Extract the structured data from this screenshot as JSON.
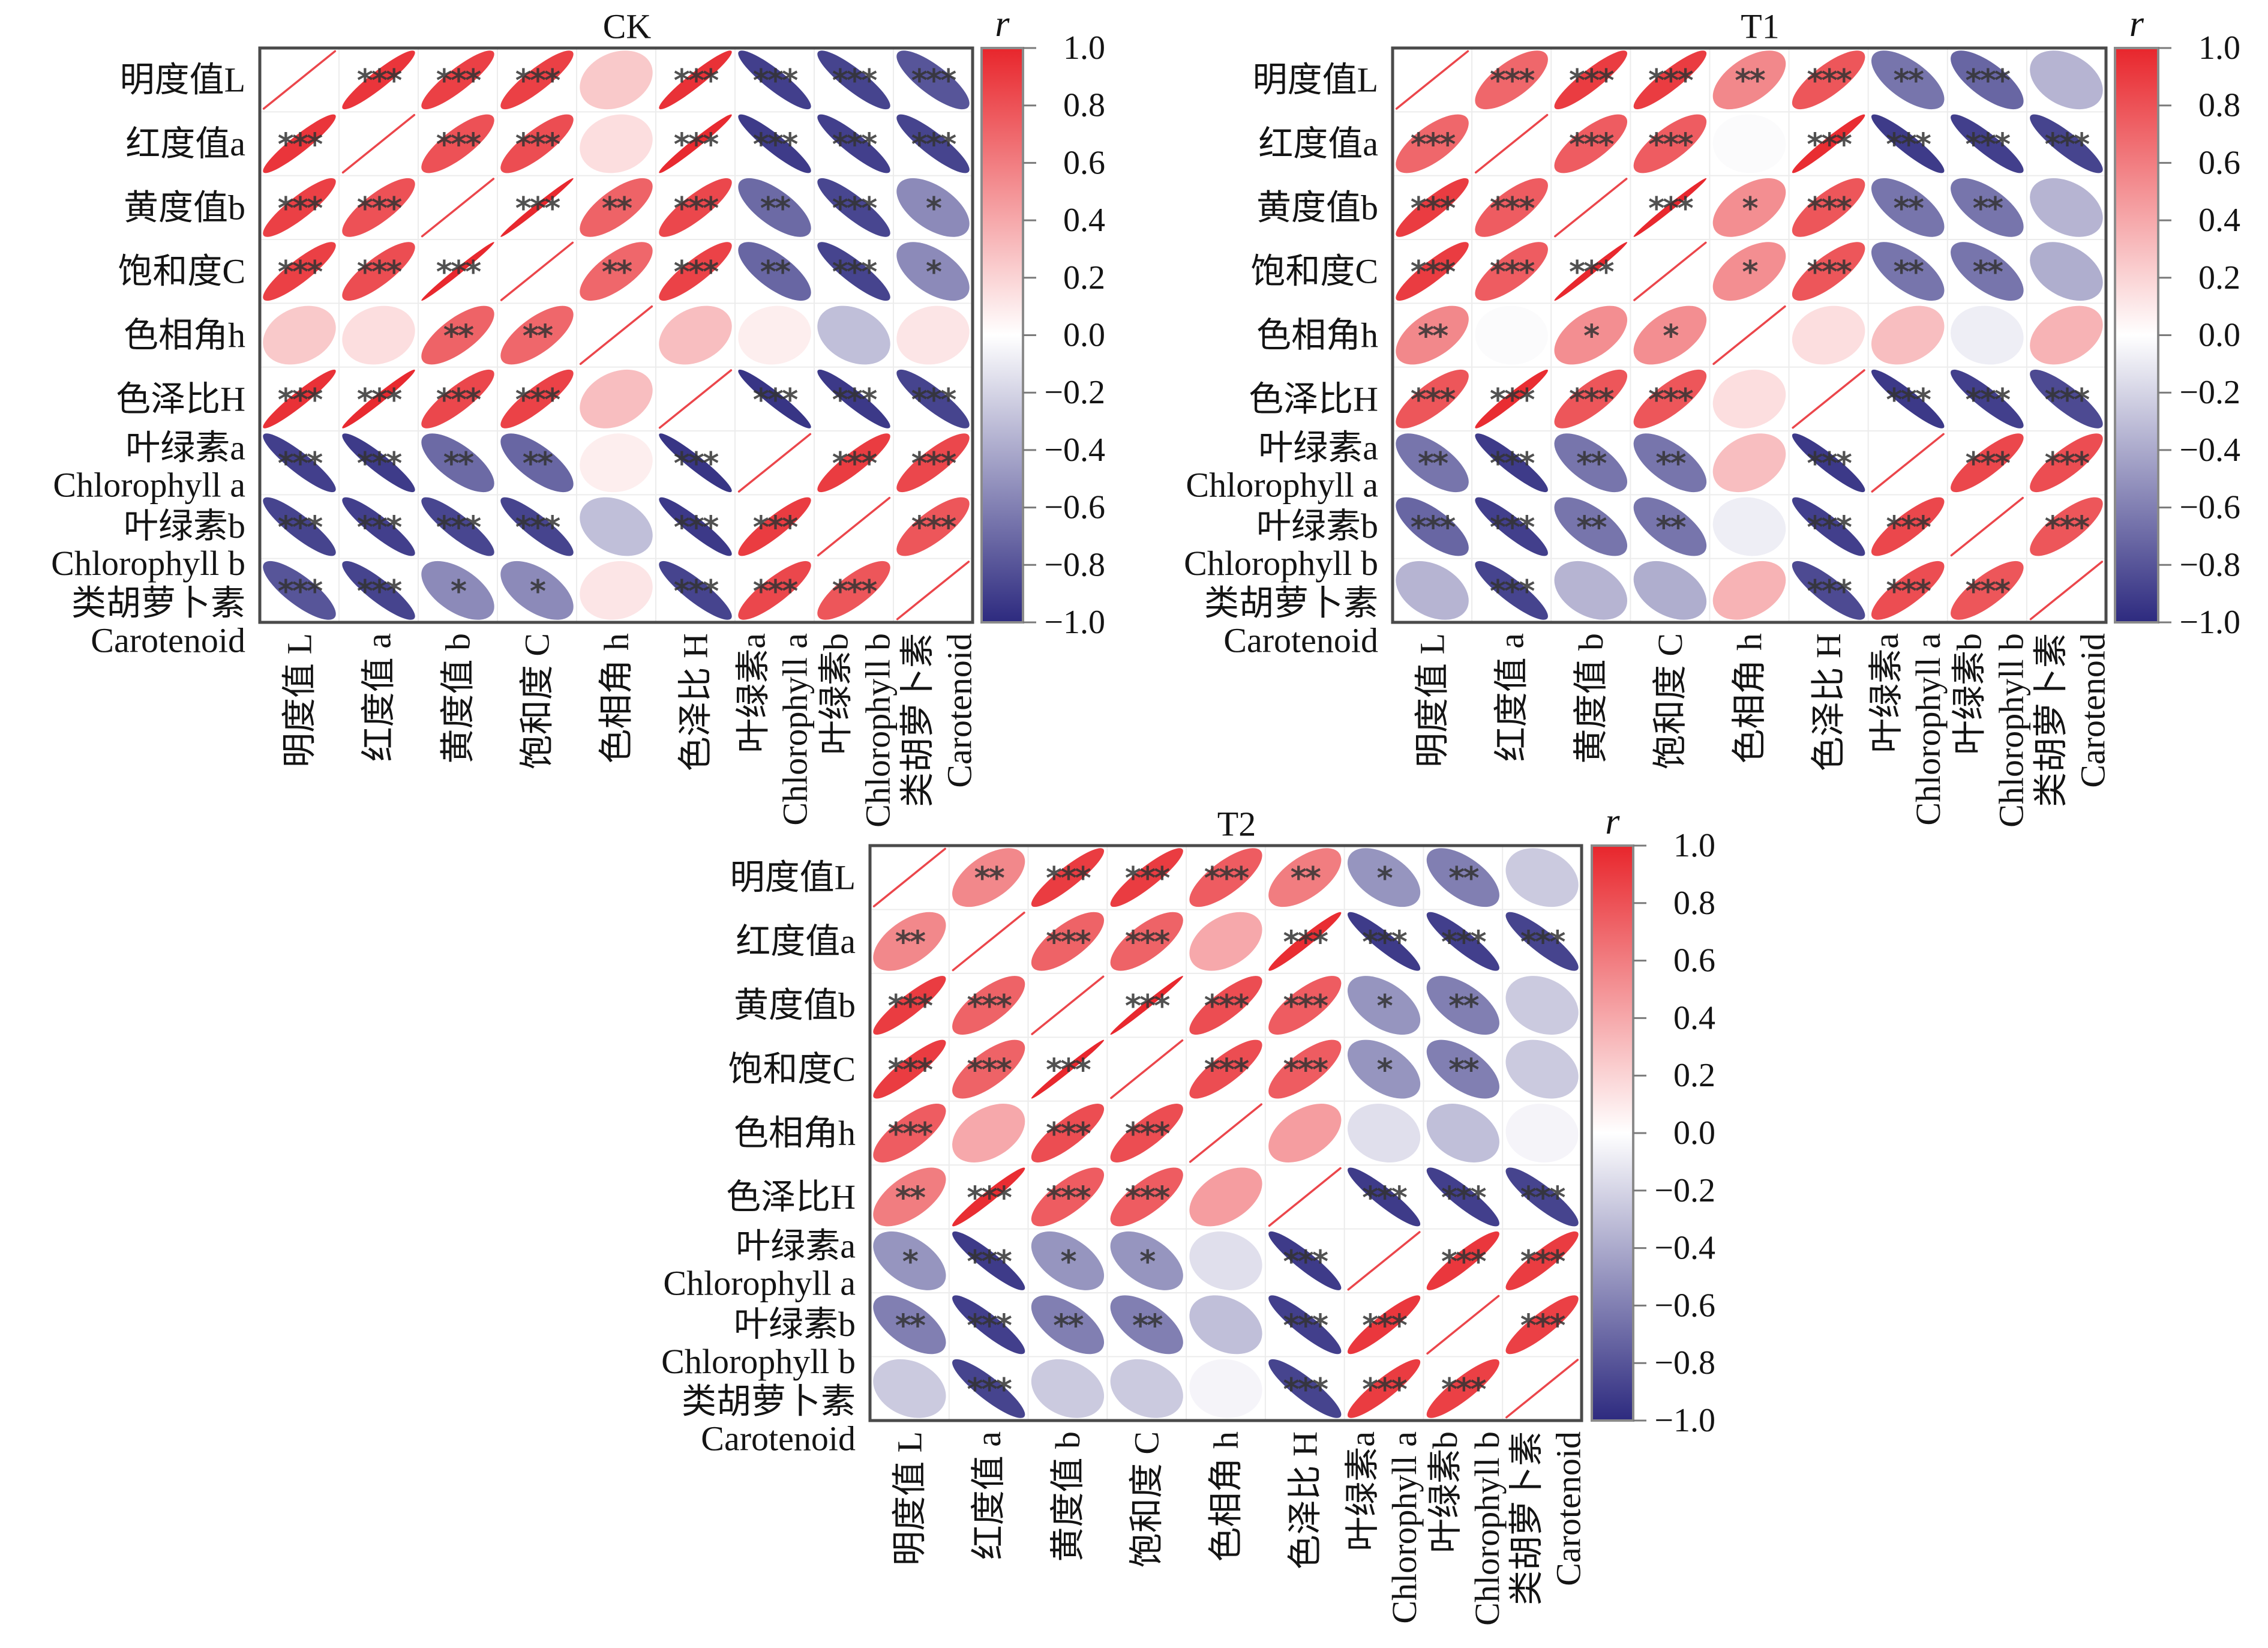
{
  "colors": {
    "positive": "#e8262c",
    "zero": "#ffffff",
    "negative": "#2d2a7f",
    "significance_marker": "#333333"
  },
  "chart_data": [
    {
      "type": "heatmap",
      "title": "CK",
      "row_labels": [
        [
          "明度值L"
        ],
        [
          "红度值a"
        ],
        [
          "黄度值b"
        ],
        [
          "饱和度C"
        ],
        [
          "色相角h"
        ],
        [
          "色泽比H"
        ],
        [
          "叶绿素a",
          "Chlorophyll a"
        ],
        [
          "叶绿素b",
          "Chlorophyll b"
        ],
        [
          "类胡萝卜素",
          "Carotenoid"
        ]
      ],
      "col_labels": [
        [
          "明度值 L"
        ],
        [
          "红度值 a"
        ],
        [
          "黄度值 b"
        ],
        [
          "饱和度 C"
        ],
        [
          "色相角 h"
        ],
        [
          "色泽比 H"
        ],
        [
          "叶绿素a",
          "Chlorophyll a"
        ],
        [
          "叶绿素b",
          "Chlorophyll b"
        ],
        [
          "类胡萝卜素",
          "Carotenoid"
        ]
      ],
      "r": [
        [
          1,
          0.93,
          0.88,
          0.88,
          0.25,
          0.95,
          -0.9,
          -0.88,
          -0.8
        ],
        [
          0.93,
          1,
          0.8,
          0.82,
          0.15,
          0.98,
          -0.92,
          -0.9,
          -0.88
        ],
        [
          0.88,
          0.8,
          1,
          0.99,
          0.72,
          0.85,
          -0.7,
          -0.87,
          -0.55
        ],
        [
          0.88,
          0.82,
          0.99,
          1,
          0.7,
          0.87,
          -0.72,
          -0.88,
          -0.55
        ],
        [
          0.25,
          0.15,
          0.72,
          0.7,
          1,
          0.3,
          0.08,
          -0.3,
          0.12
        ],
        [
          0.95,
          0.98,
          0.85,
          0.87,
          0.3,
          1,
          -0.95,
          -0.93,
          -0.88
        ],
        [
          -0.9,
          -0.92,
          -0.7,
          -0.72,
          0.08,
          -0.95,
          1,
          0.9,
          0.85
        ],
        [
          -0.88,
          -0.9,
          -0.87,
          -0.88,
          -0.3,
          -0.93,
          0.9,
          1,
          0.78
        ],
        [
          -0.8,
          -0.88,
          -0.55,
          -0.55,
          0.12,
          -0.88,
          0.85,
          0.78,
          1
        ]
      ],
      "significance": [
        [
          "",
          "***",
          "***",
          "***",
          "",
          "***",
          "***",
          "***",
          "***"
        ],
        [
          "***",
          "",
          "***",
          "***",
          "",
          "***",
          "***",
          "***",
          "***"
        ],
        [
          "***",
          "***",
          "",
          "***",
          "**",
          "***",
          "**",
          "***",
          "*"
        ],
        [
          "***",
          "***",
          "***",
          "",
          "**",
          "***",
          "**",
          "***",
          "*"
        ],
        [
          "",
          "",
          "**",
          "**",
          "",
          "",
          "",
          "",
          ""
        ],
        [
          "***",
          "***",
          "***",
          "***",
          "",
          "",
          "***",
          "***",
          "***"
        ],
        [
          "***",
          "***",
          "**",
          "**",
          "",
          "***",
          "",
          "***",
          "***"
        ],
        [
          "***",
          "***",
          "***",
          "***",
          "",
          "***",
          "***",
          "",
          "***"
        ],
        [
          "***",
          "***",
          "*",
          "*",
          "",
          "***",
          "***",
          "***",
          ""
        ]
      ],
      "colorbar": {
        "label": "r",
        "range": [
          -1,
          1
        ],
        "ticks": [
          1.0,
          0.8,
          0.6,
          0.4,
          0.2,
          0.0,
          -0.2,
          -0.4,
          -0.6,
          -0.8,
          -1.0
        ],
        "tick_labels": [
          "1.0",
          "0.8",
          "0.6",
          "0.4",
          "0.2",
          "0.0",
          "−0.2",
          "−0.4",
          "−0.6",
          "−0.8",
          "−1.0"
        ]
      }
    },
    {
      "type": "heatmap",
      "title": "T1",
      "row_labels": [
        [
          "明度值L"
        ],
        [
          "红度值a"
        ],
        [
          "黄度值b"
        ],
        [
          "饱和度C"
        ],
        [
          "色相角h"
        ],
        [
          "色泽比H"
        ],
        [
          "叶绿素a",
          "Chlorophyll a"
        ],
        [
          "叶绿素b",
          "Chlorophyll b"
        ],
        [
          "类胡萝卜素",
          "Carotenoid"
        ]
      ],
      "col_labels": [
        [
          "明度值 L"
        ],
        [
          "红度值 a"
        ],
        [
          "黄度值 b"
        ],
        [
          "饱和度 C"
        ],
        [
          "色相角 h"
        ],
        [
          "色泽比 H"
        ],
        [
          "叶绿素a",
          "Chlorophyll a"
        ],
        [
          "叶绿素b",
          "Chlorophyll b"
        ],
        [
          "类胡萝卜素",
          "Carotenoid"
        ]
      ],
      "r": [
        [
          1,
          0.7,
          0.9,
          0.9,
          0.55,
          0.78,
          -0.65,
          -0.72,
          -0.35
        ],
        [
          0.7,
          1,
          0.75,
          0.75,
          -0.02,
          0.97,
          -0.92,
          -0.9,
          -0.88
        ],
        [
          0.9,
          0.75,
          1,
          0.99,
          0.52,
          0.78,
          -0.65,
          -0.65,
          -0.35
        ],
        [
          0.9,
          0.75,
          0.99,
          1,
          0.52,
          0.78,
          -0.65,
          -0.65,
          -0.38
        ],
        [
          0.55,
          -0.02,
          0.52,
          0.52,
          1,
          0.15,
          0.3,
          -0.08,
          0.35
        ],
        [
          0.78,
          0.97,
          0.78,
          0.78,
          0.15,
          1,
          -0.93,
          -0.9,
          -0.85
        ],
        [
          -0.65,
          -0.92,
          -0.65,
          -0.65,
          0.3,
          -0.93,
          1,
          0.85,
          0.82
        ],
        [
          -0.72,
          -0.9,
          -0.65,
          -0.65,
          -0.08,
          -0.9,
          0.85,
          1,
          0.78
        ],
        [
          -0.35,
          -0.88,
          -0.35,
          -0.38,
          0.35,
          -0.85,
          0.82,
          0.78,
          1
        ]
      ],
      "significance": [
        [
          "",
          "***",
          "***",
          "***",
          "**",
          "***",
          "**",
          "***",
          ""
        ],
        [
          "***",
          "",
          "***",
          "***",
          "",
          "***",
          "***",
          "***",
          "***"
        ],
        [
          "***",
          "***",
          "",
          "***",
          "*",
          "***",
          "**",
          "**",
          ""
        ],
        [
          "***",
          "***",
          "***",
          "",
          "*",
          "***",
          "**",
          "**",
          ""
        ],
        [
          "**",
          "",
          "*",
          "*",
          "",
          "",
          "",
          "",
          ""
        ],
        [
          "***",
          "***",
          "***",
          "***",
          "",
          "",
          "***",
          "***",
          "***"
        ],
        [
          "**",
          "***",
          "**",
          "**",
          "",
          "***",
          "",
          "***",
          "***"
        ],
        [
          "***",
          "***",
          "**",
          "**",
          "",
          "***",
          "***",
          "",
          "***"
        ],
        [
          "",
          "***",
          "",
          "",
          "",
          "***",
          "***",
          "***",
          ""
        ]
      ],
      "colorbar": {
        "label": "r",
        "range": [
          -1,
          1
        ],
        "ticks": [
          1.0,
          0.8,
          0.6,
          0.4,
          0.2,
          0.0,
          -0.2,
          -0.4,
          -0.6,
          -0.8,
          -1.0
        ],
        "tick_labels": [
          "1.0",
          "0.8",
          "0.6",
          "0.4",
          "0.2",
          "0.0",
          "−0.2",
          "−0.4",
          "−0.6",
          "−0.8",
          "−1.0"
        ]
      }
    },
    {
      "type": "heatmap",
      "title": "T2",
      "row_labels": [
        [
          "明度值L"
        ],
        [
          "红度值a"
        ],
        [
          "黄度值b"
        ],
        [
          "饱和度C"
        ],
        [
          "色相角h"
        ],
        [
          "色泽比H"
        ],
        [
          "叶绿素a",
          "Chlorophyll a"
        ],
        [
          "叶绿素b",
          "Chlorophyll b"
        ],
        [
          "类胡萝卜素",
          "Carotenoid"
        ]
      ],
      "col_labels": [
        [
          "明度值 L"
        ],
        [
          "红度值 a"
        ],
        [
          "黄度值 b"
        ],
        [
          "饱和度 C"
        ],
        [
          "色相角 h"
        ],
        [
          "色泽比 H"
        ],
        [
          "叶绿素a",
          "Chlorophyll a"
        ],
        [
          "叶绿素b",
          "Chlorophyll b"
        ],
        [
          "类胡萝卜素",
          "Carotenoid"
        ]
      ],
      "r": [
        [
          1,
          0.55,
          0.9,
          0.9,
          0.75,
          0.6,
          -0.5,
          -0.6,
          -0.25
        ],
        [
          0.55,
          1,
          0.72,
          0.72,
          0.4,
          0.97,
          -0.92,
          -0.9,
          -0.88
        ],
        [
          0.9,
          0.72,
          1,
          0.99,
          0.82,
          0.75,
          -0.5,
          -0.6,
          -0.25
        ],
        [
          0.9,
          0.72,
          0.99,
          1,
          0.82,
          0.75,
          -0.5,
          -0.6,
          -0.25
        ],
        [
          0.75,
          0.4,
          0.82,
          0.82,
          1,
          0.45,
          -0.15,
          -0.3,
          -0.05
        ],
        [
          0.6,
          0.97,
          0.75,
          0.75,
          0.45,
          1,
          -0.92,
          -0.9,
          -0.88
        ],
        [
          -0.5,
          -0.92,
          -0.5,
          -0.5,
          -0.15,
          -0.92,
          1,
          0.92,
          0.9
        ],
        [
          -0.6,
          -0.9,
          -0.6,
          -0.6,
          -0.3,
          -0.9,
          0.92,
          1,
          0.88
        ],
        [
          -0.25,
          -0.88,
          -0.25,
          -0.25,
          -0.05,
          -0.88,
          0.9,
          0.88,
          1
        ]
      ],
      "significance": [
        [
          "",
          "**",
          "***",
          "***",
          "***",
          "**",
          "*",
          "**",
          ""
        ],
        [
          "**",
          "",
          "***",
          "***",
          "",
          "***",
          "***",
          "***",
          "***"
        ],
        [
          "***",
          "***",
          "",
          "***",
          "***",
          "***",
          "*",
          "**",
          ""
        ],
        [
          "***",
          "***",
          "***",
          "",
          "***",
          "***",
          "*",
          "**",
          ""
        ],
        [
          "***",
          "",
          "***",
          "***",
          "",
          "",
          "",
          "",
          ""
        ],
        [
          "**",
          "***",
          "***",
          "***",
          "",
          "",
          "***",
          "***",
          "***"
        ],
        [
          "*",
          "***",
          "*",
          "*",
          "",
          "***",
          "",
          "***",
          "***"
        ],
        [
          "**",
          "***",
          "**",
          "**",
          "",
          "***",
          "***",
          "",
          "***"
        ],
        [
          "",
          "***",
          "",
          "",
          "",
          "***",
          "***",
          "***",
          ""
        ]
      ],
      "colorbar": {
        "label": "r",
        "range": [
          -1,
          1
        ],
        "ticks": [
          1.0,
          0.8,
          0.6,
          0.4,
          0.2,
          0.0,
          -0.2,
          -0.4,
          -0.6,
          -0.8,
          -1.0
        ],
        "tick_labels": [
          "1.0",
          "0.8",
          "0.6",
          "0.4",
          "0.2",
          "0.0",
          "−0.2",
          "−0.4",
          "−0.6",
          "−0.8",
          "−1.0"
        ]
      }
    }
  ]
}
